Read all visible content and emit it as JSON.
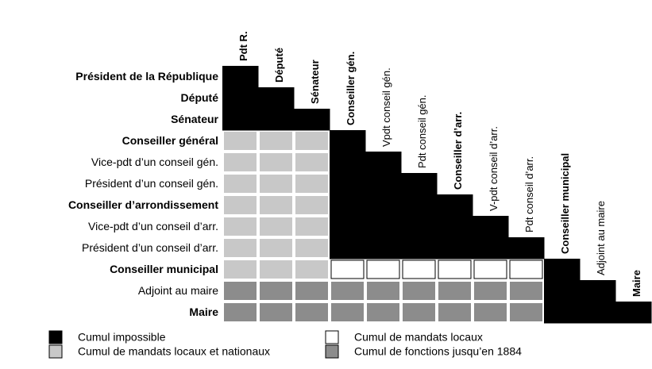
{
  "rows": [
    {
      "label": "Président de la République",
      "bold": true
    },
    {
      "label": "Député",
      "bold": true
    },
    {
      "label": "Sénateur",
      "bold": true
    },
    {
      "label": "Conseiller général",
      "bold": true
    },
    {
      "label": "Vice-pdt d’un conseil gén.",
      "bold": false
    },
    {
      "label": "Président d’un conseil gén.",
      "bold": false
    },
    {
      "label": "Conseiller d’arrondissement",
      "bold": true
    },
    {
      "label": "Vice-pdt d’un conseil d’arr.",
      "bold": false
    },
    {
      "label": "Président d’un conseil d’arr.",
      "bold": false
    },
    {
      "label": "Conseiller municipal",
      "bold": true
    },
    {
      "label": "Adjoint au maire",
      "bold": false
    },
    {
      "label": "Maire",
      "bold": true
    }
  ],
  "columns": [
    {
      "label": "Pdt R.",
      "bold": true
    },
    {
      "label": "Député",
      "bold": true
    },
    {
      "label": "Sénateur",
      "bold": true
    },
    {
      "label": "Conseiller gén.",
      "bold": true
    },
    {
      "label": "Vpdt conseil gén.",
      "bold": false
    },
    {
      "label": "Pdt conseil gén.",
      "bold": false
    },
    {
      "label": "Conseiller d’arr.",
      "bold": true
    },
    {
      "label": "V-pdt conseil d’arr.",
      "bold": false
    },
    {
      "label": "Pdt conseil d’arr.",
      "bold": false
    },
    {
      "label": "Conseiller municipal",
      "bold": true
    },
    {
      "label": "Adjoint au maire",
      "bold": false
    },
    {
      "label": "Maire",
      "bold": true
    }
  ],
  "cells": [
    [
      0,
      null,
      null,
      null,
      null,
      null,
      null,
      null,
      null,
      null,
      null,
      null
    ],
    [
      0,
      0,
      null,
      null,
      null,
      null,
      null,
      null,
      null,
      null,
      null,
      null
    ],
    [
      0,
      0,
      0,
      null,
      null,
      null,
      null,
      null,
      null,
      null,
      null,
      null
    ],
    [
      1,
      1,
      1,
      0,
      null,
      null,
      null,
      null,
      null,
      null,
      null,
      null
    ],
    [
      1,
      1,
      1,
      0,
      0,
      null,
      null,
      null,
      null,
      null,
      null,
      null
    ],
    [
      1,
      1,
      1,
      0,
      0,
      0,
      null,
      null,
      null,
      null,
      null,
      null
    ],
    [
      1,
      1,
      1,
      0,
      0,
      0,
      0,
      null,
      null,
      null,
      null,
      null
    ],
    [
      1,
      1,
      1,
      0,
      0,
      0,
      0,
      0,
      null,
      null,
      null,
      null
    ],
    [
      1,
      1,
      1,
      0,
      0,
      0,
      0,
      0,
      0,
      null,
      null,
      null
    ],
    [
      1,
      1,
      1,
      2,
      2,
      2,
      2,
      2,
      2,
      0,
      null,
      null
    ],
    [
      3,
      3,
      3,
      3,
      3,
      3,
      3,
      3,
      3,
      0,
      0,
      null
    ],
    [
      3,
      3,
      3,
      3,
      3,
      3,
      3,
      3,
      3,
      0,
      0,
      0
    ]
  ],
  "legend": [
    {
      "label": "Cumul impossible",
      "color": "#000000"
    },
    {
      "label": "Cumul de mandats locaux et nationaux",
      "color": "#c8c8c8"
    },
    {
      "label": "Cumul de mandats locaux",
      "color": "#ffffff"
    },
    {
      "label": "Cumul de fonctions jusqu’en 1884",
      "color": "#8c8c8c"
    }
  ]
}
